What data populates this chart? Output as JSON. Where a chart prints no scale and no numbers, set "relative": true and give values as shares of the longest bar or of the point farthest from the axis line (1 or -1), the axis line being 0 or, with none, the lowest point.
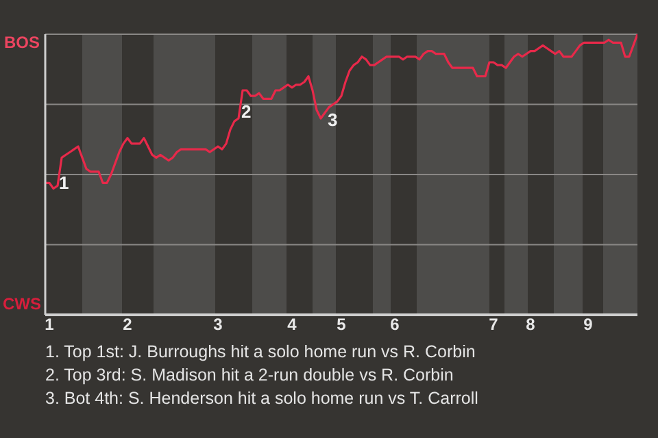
{
  "chart_data": {
    "type": "line",
    "relative": true,
    "categories": [
      null,
      "1",
      null,
      null,
      null,
      null,
      null,
      null,
      null,
      null,
      null,
      null,
      null,
      null,
      null,
      null,
      null,
      null,
      null,
      null,
      "2",
      null,
      null,
      null,
      null,
      null,
      null,
      null,
      null,
      null,
      null,
      null,
      null,
      null,
      null,
      null,
      null,
      null,
      null,
      null,
      null,
      null,
      "3",
      null,
      null,
      null,
      null,
      null,
      null,
      null,
      null,
      null,
      null,
      null,
      null,
      null,
      null,
      null,
      null,
      null,
      "4",
      null,
      null,
      null,
      null,
      null,
      null,
      null,
      null,
      null,
      null,
      null,
      "5",
      null,
      null,
      null,
      null,
      null,
      null,
      null,
      null,
      null,
      null,
      null,
      null,
      "6",
      null,
      null,
      null,
      null,
      null,
      null,
      null,
      null,
      null,
      null,
      null,
      null,
      null,
      null,
      null,
      null,
      null,
      null,
      null,
      null,
      null,
      null,
      null,
      "7",
      null,
      null,
      null,
      null,
      null,
      null,
      null,
      null,
      "8",
      null,
      null,
      null,
      null,
      null,
      null,
      null,
      null,
      null,
      null,
      null,
      null,
      null,
      "9",
      null,
      null,
      null,
      null,
      null,
      null,
      null,
      null,
      null,
      null,
      null,
      null
    ],
    "series": [
      {
        "color": "#e8294a",
        "values": [
          0.47,
          0.47,
          0.45,
          0.46,
          0.56,
          0.57,
          0.58,
          0.59,
          0.6,
          0.56,
          0.52,
          0.51,
          0.51,
          0.51,
          0.47,
          0.47,
          0.5,
          0.54,
          0.58,
          0.61,
          0.63,
          0.61,
          0.61,
          0.61,
          0.63,
          0.6,
          0.57,
          0.56,
          0.57,
          0.56,
          0.55,
          0.56,
          0.58,
          0.59,
          0.59,
          0.59,
          0.59,
          0.59,
          0.59,
          0.59,
          0.58,
          0.59,
          0.6,
          0.59,
          0.61,
          0.66,
          0.69,
          0.7,
          0.8,
          0.8,
          0.78,
          0.78,
          0.79,
          0.77,
          0.77,
          0.77,
          0.8,
          0.8,
          0.81,
          0.82,
          0.81,
          0.82,
          0.82,
          0.83,
          0.85,
          0.8,
          0.73,
          0.7,
          0.72,
          0.74,
          0.75,
          0.76,
          0.78,
          0.83,
          0.87,
          0.89,
          0.9,
          0.92,
          0.91,
          0.89,
          0.89,
          0.9,
          0.91,
          0.92,
          0.92,
          0.92,
          0.92,
          0.91,
          0.92,
          0.92,
          0.92,
          0.91,
          0.93,
          0.94,
          0.94,
          0.93,
          0.93,
          0.93,
          0.9,
          0.88,
          0.88,
          0.88,
          0.88,
          0.88,
          0.88,
          0.85,
          0.85,
          0.85,
          0.9,
          0.9,
          0.89,
          0.89,
          0.88,
          0.9,
          0.92,
          0.93,
          0.92,
          0.93,
          0.94,
          0.94,
          0.95,
          0.96,
          0.95,
          0.94,
          0.93,
          0.94,
          0.92,
          0.92,
          0.92,
          0.94,
          0.96,
          0.97,
          0.97,
          0.97,
          0.97,
          0.97,
          0.97,
          0.98,
          0.97,
          0.97,
          0.97,
          0.92,
          0.92,
          0.96,
          1
        ]
      }
    ],
    "grid": "y",
    "marker": "none",
    "annotations": [
      "BOS",
      "CWS",
      "1",
      "2",
      "3",
      "1. Top 1st: J. Burroughs hit a solo home run vs R. Corbin",
      "2. Top 3rd: S. Madison hit a 2-run double vs R. Corbin",
      "3. Bot 4th: S. Henderson hit a solo home run vs T. Carroll"
    ]
  }
}
